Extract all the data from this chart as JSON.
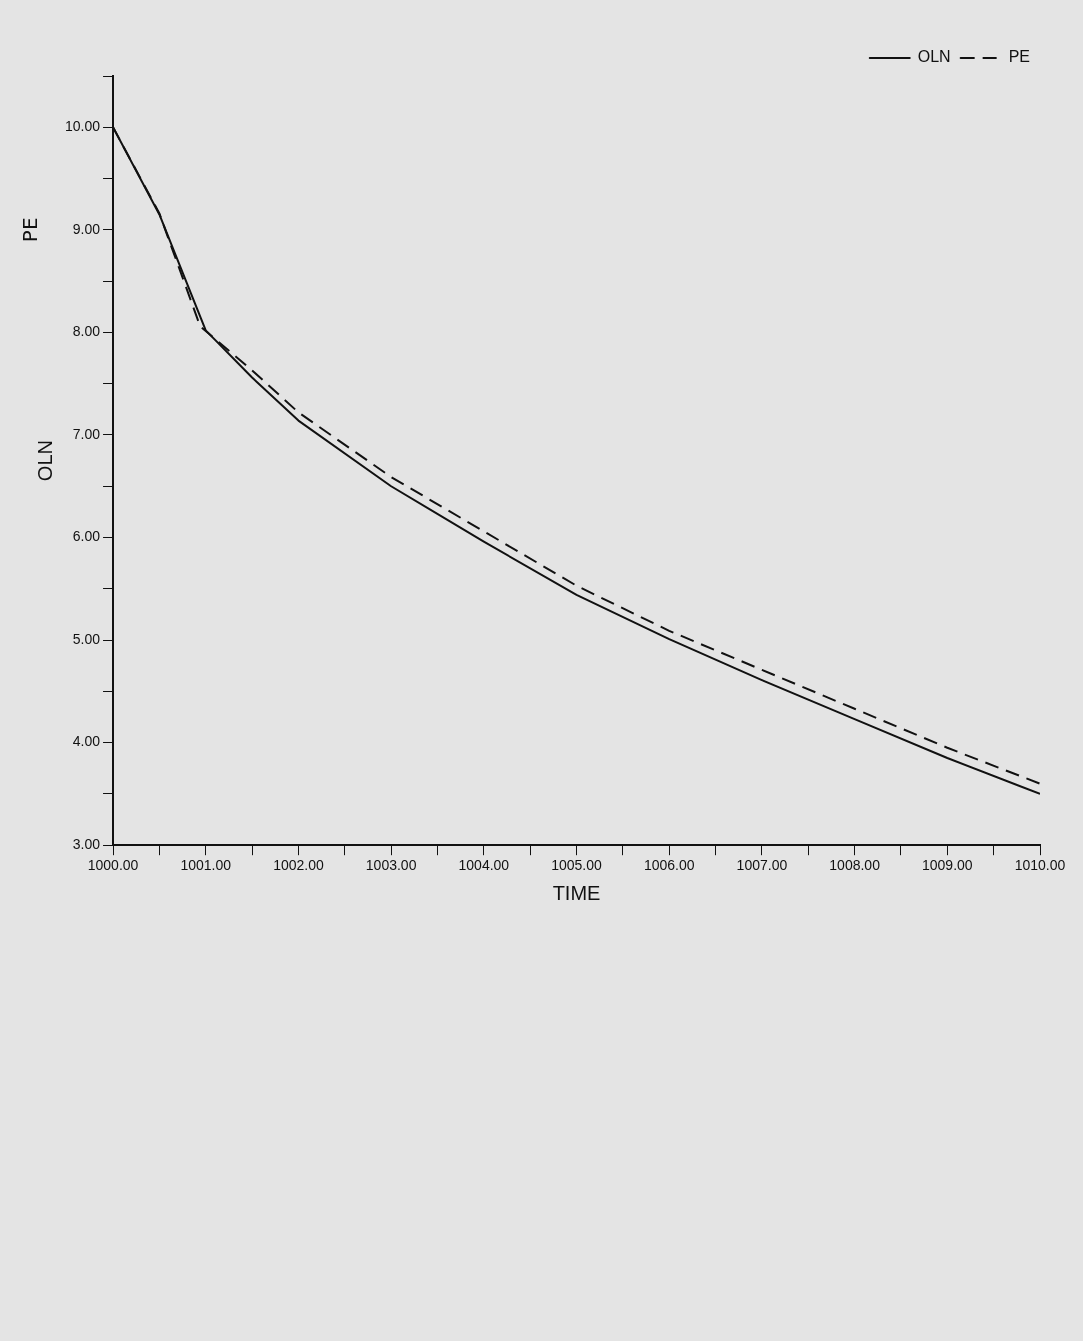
{
  "chart_data": {
    "type": "line",
    "xlabel": "TIME",
    "ylabel": "OLN",
    "annotations": [
      "PE"
    ],
    "series": [
      {
        "name": "OLN",
        "color": "#111111",
        "line_style": "solid",
        "x": [
          1000,
          1000.5,
          1001,
          1001.5,
          1002,
          1003,
          1004,
          1005,
          1006,
          1007,
          1008,
          1009,
          1010
        ],
        "values": [
          10,
          9.15,
          8.02,
          7.56,
          7.14,
          6.5,
          5.96,
          5.44,
          5.01,
          4.61,
          4.23,
          3.85,
          3.5
        ]
      },
      {
        "name": "PE",
        "color": "#111111",
        "line_style": "dashed",
        "x": [
          1000,
          1000.5,
          1000.94,
          1001.5,
          1002,
          1003,
          1004,
          1005,
          1006,
          1007,
          1008,
          1009,
          1010
        ],
        "values": [
          10,
          9.16,
          8.06,
          7.63,
          7.22,
          6.59,
          6.06,
          5.53,
          5.09,
          4.71,
          4.33,
          3.95,
          3.6
        ]
      }
    ],
    "xlim": [
      1000,
      1010
    ],
    "xticks": [
      {
        "value": 1000,
        "label": "1000.00"
      },
      {
        "value": 1000.5,
        "label": null
      },
      {
        "value": 1001,
        "label": "1001.00"
      },
      {
        "value": 1001.5,
        "label": null
      },
      {
        "value": 1002,
        "label": "1002.00"
      },
      {
        "value": 1002.5,
        "label": null
      },
      {
        "value": 1003,
        "label": "1003.00"
      },
      {
        "value": 1003.5,
        "label": null
      },
      {
        "value": 1004,
        "label": "1004.00"
      },
      {
        "value": 1004.5,
        "label": null
      },
      {
        "value": 1005,
        "label": "1005.00"
      },
      {
        "value": 1005.5,
        "label": null
      },
      {
        "value": 1006,
        "label": "1006.00"
      },
      {
        "value": 1006.5,
        "label": null
      },
      {
        "value": 1007,
        "label": "1007.00"
      },
      {
        "value": 1007.5,
        "label": null
      },
      {
        "value": 1008,
        "label": "1008.00"
      },
      {
        "value": 1008.5,
        "label": null
      },
      {
        "value": 1009,
        "label": "1009.00"
      },
      {
        "value": 1009.5,
        "label": null
      },
      {
        "value": 1010,
        "label": "1010.00"
      }
    ],
    "ylim": [
      3,
      10.5
    ],
    "yticks": [
      {
        "value": 3,
        "label": "3.00"
      },
      {
        "value": 3.5,
        "label": null
      },
      {
        "value": 4,
        "label": "4.00"
      },
      {
        "value": 4.5,
        "label": null
      },
      {
        "value": 5,
        "label": "5.00"
      },
      {
        "value": 5.5,
        "label": null
      },
      {
        "value": 6,
        "label": "6.00"
      },
      {
        "value": 6.5,
        "label": null
      },
      {
        "value": 7,
        "label": "7.00"
      },
      {
        "value": 7.5,
        "label": null
      },
      {
        "value": 8,
        "label": "8.00"
      },
      {
        "value": 8.5,
        "label": null
      },
      {
        "value": 9,
        "label": "9.00"
      },
      {
        "value": 9.5,
        "label": null
      },
      {
        "value": 10,
        "label": "10.00"
      },
      {
        "value": 10.5,
        "label": null
      }
    ],
    "grid": false,
    "legend": "top right",
    "marker": "none"
  }
}
